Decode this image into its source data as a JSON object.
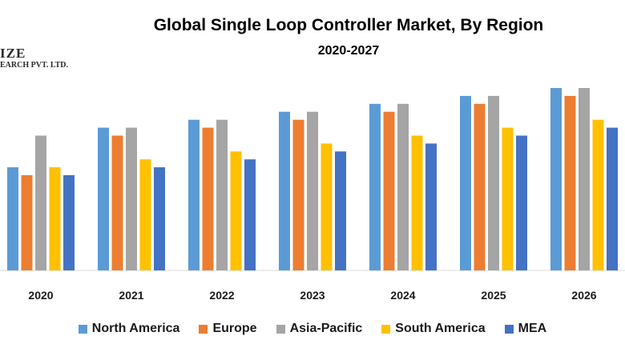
{
  "logo": {
    "main": "IZE",
    "sub": "EARCH PVT. LTD."
  },
  "chart_data": {
    "type": "bar",
    "title": "Global Single Loop Controller Market, By Region",
    "subtitle": "2020-2027",
    "categories": [
      "2020",
      "2021",
      "2022",
      "2023",
      "2024",
      "2025",
      "2026"
    ],
    "ylim": [
      0,
      23
    ],
    "grid": false,
    "legend_position": "bottom",
    "series": [
      {
        "name": "North America",
        "color": "#5b9bd5",
        "values": [
          13,
          18,
          19,
          20,
          21,
          22,
          23
        ]
      },
      {
        "name": "Europe",
        "color": "#ed7d31",
        "values": [
          12,
          17,
          18,
          19,
          20,
          21,
          22
        ]
      },
      {
        "name": "Asia-Pacific",
        "color": "#a5a5a5",
        "values": [
          17,
          18,
          19,
          20,
          21,
          22,
          23
        ]
      },
      {
        "name": "South America",
        "color": "#ffc000",
        "values": [
          13,
          14,
          15,
          16,
          17,
          18,
          19
        ]
      },
      {
        "name": "MEA",
        "color": "#4472c4",
        "values": [
          12,
          13,
          14,
          15,
          16,
          17,
          18
        ]
      }
    ]
  }
}
